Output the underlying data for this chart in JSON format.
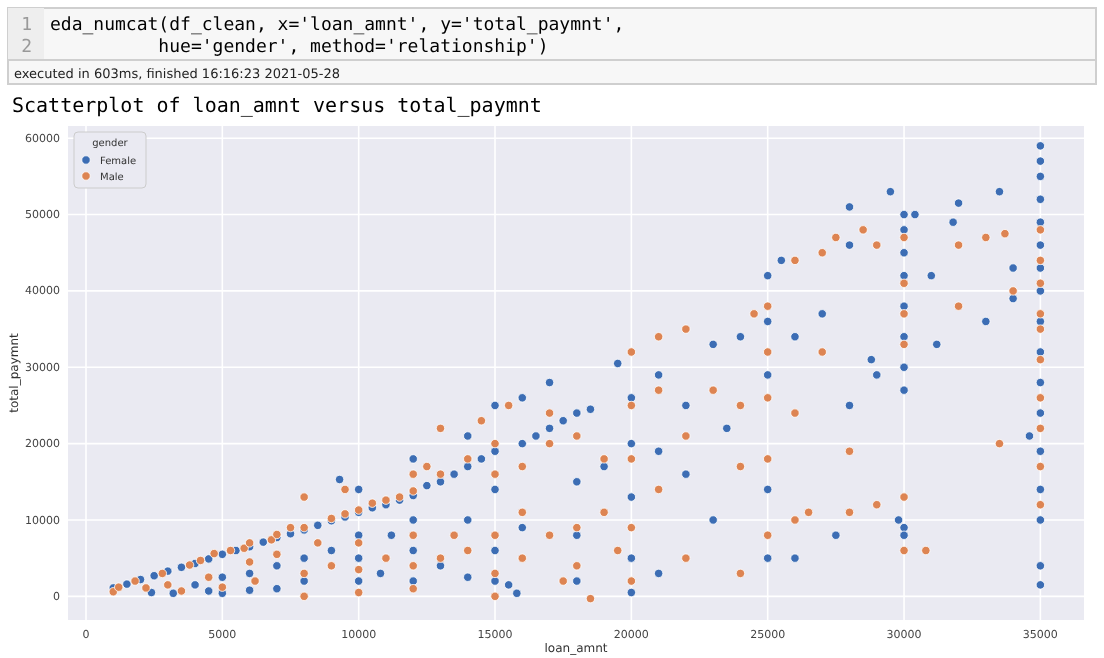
{
  "chart_data": {
    "type": "scatter",
    "title": "Scatterplot of loan_amnt versus total_paymnt",
    "annotations": [
      "1",
      "eda_numcat(df_clean, x='loan_amnt', y='total_paymnt',",
      "2",
      "          hue='gender', method='relationship')",
      "executed in 603ms, finished 16:16:23 2021-05-28"
    ],
    "xlabel": "loan_amnt",
    "ylabel": "total_paymnt",
    "legend_title": "gender",
    "legend": "top left",
    "grid": true,
    "marker": "circle",
    "xlim": [
      -660,
      36600
    ],
    "ylim": [
      -3100,
      61600
    ],
    "xticks": [
      0,
      5000,
      10000,
      15000,
      20000,
      25000,
      30000,
      35000
    ],
    "yticks": [
      0,
      10000,
      20000,
      30000,
      40000,
      50000,
      60000
    ],
    "series": [
      {
        "name": "Female",
        "color": "#3c6db4",
        "x": [
          1000,
          1500,
          2000,
          2400,
          2500,
          3000,
          3200,
          3500,
          4000,
          4000,
          4500,
          4500,
          5000,
          5000,
          5000,
          5500,
          6000,
          6000,
          6000,
          6500,
          7000,
          7000,
          7000,
          7500,
          8000,
          8000,
          8000,
          8500,
          9000,
          9000,
          9300,
          9500,
          10000,
          10000,
          10000,
          10000,
          10000,
          10500,
          10800,
          11000,
          11200,
          11500,
          12000,
          12000,
          12000,
          12000,
          12000,
          12500,
          13000,
          13000,
          13500,
          14000,
          14000,
          14000,
          14000,
          14500,
          15000,
          15000,
          15000,
          15000,
          15000,
          15500,
          15800,
          16000,
          16000,
          16000,
          16500,
          17000,
          17000,
          17500,
          18000,
          18000,
          18000,
          18000,
          18500,
          19000,
          19500,
          20000,
          20000,
          20000,
          20000,
          20000,
          21000,
          21000,
          21000,
          22000,
          22000,
          23000,
          23000,
          23500,
          24000,
          25000,
          25000,
          25000,
          25000,
          25000,
          25500,
          26000,
          26000,
          27000,
          27500,
          28000,
          28000,
          28000,
          28800,
          29000,
          29500,
          29800,
          30000,
          30000,
          30000,
          30000,
          30000,
          30000,
          30000,
          30000,
          30000,
          30000,
          30400,
          31000,
          31200,
          31800,
          32000,
          33000,
          33500,
          34000,
          34000,
          34600,
          35000,
          35000,
          35000,
          35000,
          35000,
          35000,
          35000,
          35000,
          35000,
          35000,
          35000,
          35000,
          35000,
          35000,
          35000,
          35000,
          35000
        ],
        "values": [
          1100,
          1600,
          2200,
          500,
          2700,
          3300,
          400,
          3800,
          4300,
          1500,
          4900,
          700,
          5500,
          2500,
          400,
          6000,
          6500,
          3000,
          800,
          7100,
          7700,
          4000,
          1000,
          8200,
          8700,
          5000,
          2000,
          9300,
          9900,
          6000,
          15300,
          10400,
          11000,
          14000,
          8000,
          5000,
          2000,
          11600,
          3000,
          12000,
          8000,
          12600,
          13200,
          18000,
          10000,
          6000,
          2000,
          14500,
          15000,
          4000,
          16000,
          17000,
          21000,
          10000,
          2500,
          18000,
          19000,
          25000,
          14000,
          6000,
          2000,
          1500,
          400,
          20000,
          26000,
          9000,
          21000,
          22000,
          28000,
          23000,
          24000,
          15000,
          8000,
          2000,
          24500,
          17000,
          30500,
          26000,
          20000,
          13000,
          5000,
          500,
          29000,
          19000,
          3000,
          25000,
          16000,
          33000,
          10000,
          22000,
          34000,
          42000,
          36000,
          29000,
          14000,
          5000,
          44000,
          34000,
          5000,
          37000,
          8000,
          51000,
          46000,
          25000,
          31000,
          29000,
          53000,
          10000,
          50000,
          48000,
          45000,
          42000,
          38000,
          34000,
          30000,
          27000,
          9000,
          8000,
          50000,
          42000,
          33000,
          49000,
          51500,
          36000,
          53000,
          39000,
          43000,
          21000,
          59000,
          57000,
          55000,
          52000,
          49000,
          46000,
          43000,
          40000,
          36000,
          32000,
          28000,
          24000,
          19000,
          14000,
          10000,
          4000,
          1500
        ]
      },
      {
        "name": "Male",
        "color": "#dd8452",
        "x": [
          1000,
          1200,
          1800,
          2200,
          2800,
          3000,
          3500,
          3800,
          4200,
          4500,
          4700,
          5000,
          5300,
          5800,
          6000,
          6000,
          6200,
          6800,
          7000,
          7000,
          7500,
          8000,
          8000,
          8000,
          8000,
          8500,
          9000,
          9000,
          9500,
          9500,
          10000,
          10000,
          10000,
          10000,
          10500,
          11000,
          11000,
          11500,
          12000,
          12000,
          12000,
          12000,
          12000,
          12500,
          13000,
          13000,
          13000,
          13500,
          14000,
          14000,
          14500,
          15000,
          15000,
          15000,
          15000,
          15000,
          15500,
          16000,
          16000,
          16000,
          17000,
          17000,
          17000,
          17500,
          18000,
          18000,
          18000,
          18500,
          19000,
          19000,
          19500,
          20000,
          20000,
          20000,
          20000,
          20000,
          21000,
          21000,
          21000,
          22000,
          22000,
          22000,
          23000,
          24000,
          24000,
          24000,
          24500,
          25000,
          25000,
          25000,
          25000,
          25000,
          26000,
          26000,
          26000,
          26500,
          27000,
          27000,
          27500,
          28000,
          28000,
          28500,
          29000,
          29000,
          30000,
          30000,
          30000,
          30000,
          30000,
          30000,
          30800,
          32000,
          32000,
          33000,
          33500,
          33700,
          34000,
          35000,
          35000,
          35000,
          35000,
          35000,
          35000,
          35000,
          35000,
          35000,
          35000
        ],
        "values": [
          600,
          1200,
          2000,
          1100,
          3000,
          1500,
          700,
          4100,
          4700,
          2500,
          5600,
          1200,
          6000,
          6300,
          7000,
          4500,
          2000,
          7400,
          8100,
          5500,
          9000,
          9000,
          13000,
          3000,
          0,
          7000,
          10200,
          4000,
          10800,
          14000,
          11300,
          7000,
          3500,
          500,
          12200,
          12600,
          5000,
          13000,
          13800,
          16000,
          8000,
          4000,
          1000,
          17000,
          22000,
          16000,
          5000,
          8000,
          18000,
          6000,
          23000,
          20000,
          16000,
          8000,
          3000,
          0,
          25000,
          17000,
          11000,
          5000,
          24000,
          20000,
          8000,
          2000,
          21000,
          9000,
          4000,
          -300,
          18000,
          11000,
          6000,
          32000,
          25000,
          18000,
          9000,
          2000,
          34000,
          27000,
          14000,
          35000,
          21000,
          5000,
          27000,
          25000,
          17000,
          3000,
          37000,
          38000,
          32000,
          26000,
          18000,
          8000,
          44000,
          24000,
          10000,
          11000,
          32000,
          45000,
          47000,
          19000,
          11000,
          48000,
          46000,
          12000,
          47000,
          41000,
          37000,
          33000,
          13000,
          6000,
          6000,
          38000,
          46000,
          47000,
          20000,
          47500,
          40000,
          48000,
          44000,
          41000,
          37000,
          35000,
          31000,
          26000,
          22000,
          17000,
          12000
        ]
      }
    ]
  }
}
